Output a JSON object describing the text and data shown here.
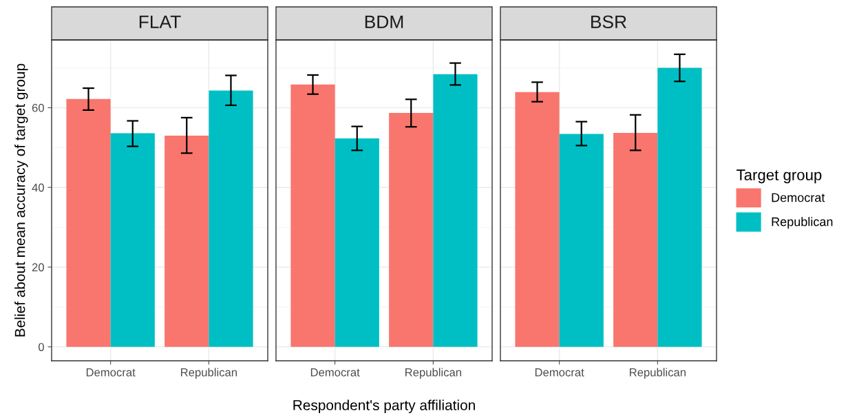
{
  "chart_data": [
    {
      "type": "bar",
      "title": "FLAT",
      "ylabel": "Belief about mean accuracy of target group",
      "legend_title": "Target group",
      "categories": [
        "Democrat",
        "Republican"
      ],
      "ylim": [
        -3.5,
        77
      ],
      "yticks": [
        0,
        20,
        40,
        60
      ],
      "grid": true,
      "legend": "right",
      "series": [
        {
          "name": "Democrat",
          "color": "#f8766d",
          "values": [
            62.2,
            53.0
          ],
          "errors": [
            [
              59.4,
              64.9
            ],
            [
              48.6,
              57.5
            ]
          ]
        },
        {
          "name": "Republican",
          "color": "#00bfc4",
          "values": [
            53.6,
            64.3
          ],
          "errors": [
            [
              50.3,
              56.7
            ],
            [
              60.6,
              68.1
            ]
          ]
        }
      ]
    },
    {
      "type": "bar",
      "title": "BDM",
      "xlabel": "Respondent's party affiliation",
      "categories": [
        "Democrat",
        "Republican"
      ],
      "ylim": [
        -3.5,
        77
      ],
      "yticks": [
        0,
        20,
        40,
        60
      ],
      "grid": true,
      "tick_labels": "x",
      "series": [
        {
          "color": "#f8766d",
          "values": [
            65.8,
            58.7
          ],
          "errors": [
            [
              63.4,
              68.2
            ],
            [
              55.2,
              62.1
            ]
          ]
        },
        {
          "color": "#00bfc4",
          "values": [
            52.3,
            68.4
          ],
          "errors": [
            [
              49.3,
              55.3
            ],
            [
              65.7,
              71.2
            ]
          ]
        }
      ]
    },
    {
      "type": "bar",
      "title": "BSR",
      "categories": [
        "Democrat",
        "Republican"
      ],
      "ylim": [
        -3.5,
        77
      ],
      "yticks": [
        0,
        20,
        40,
        60
      ],
      "grid": true,
      "tick_labels": "x",
      "series": [
        {
          "color": "#f8766d",
          "values": [
            63.9,
            53.7
          ],
          "errors": [
            [
              61.5,
              66.4
            ],
            [
              49.3,
              58.2
            ]
          ]
        },
        {
          "color": "#00bfc4",
          "values": [
            53.4,
            70.0
          ],
          "errors": [
            [
              50.5,
              56.5
            ],
            [
              66.6,
              73.4
            ]
          ]
        }
      ]
    }
  ]
}
